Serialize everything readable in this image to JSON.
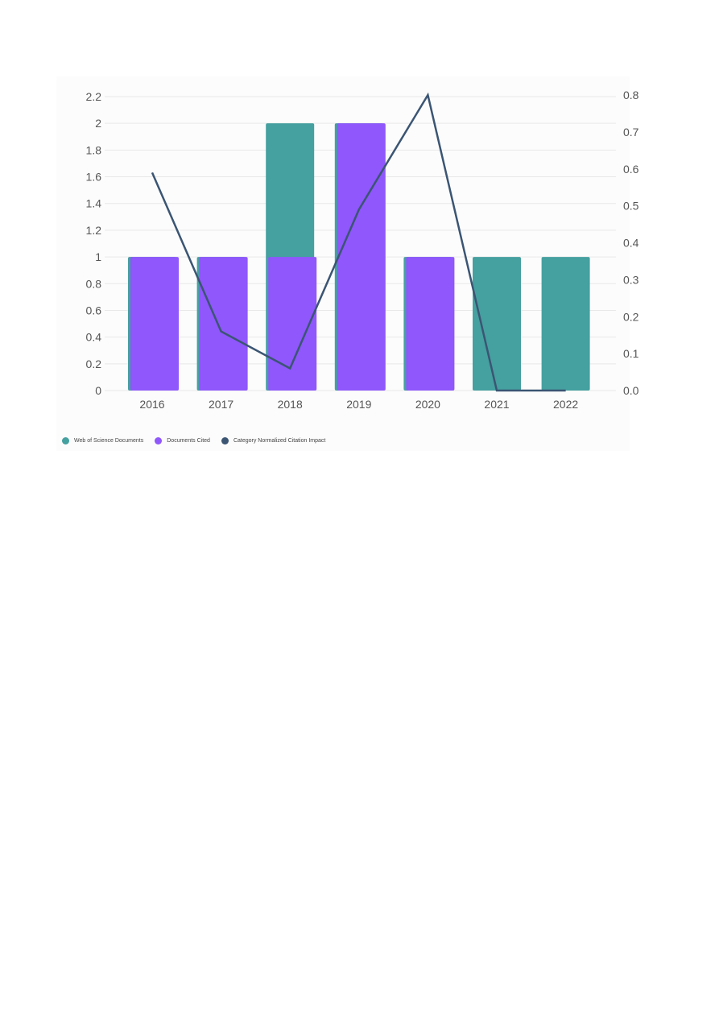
{
  "chart_data": {
    "type": "bar",
    "title": "",
    "categories": [
      "2016",
      "2017",
      "2018",
      "2019",
      "2020",
      "2021",
      "2022"
    ],
    "series": [
      {
        "name": "Web of Science Documents",
        "type": "bar",
        "axis": "left",
        "color": "#45a0a0",
        "values": [
          1,
          1,
          2,
          2,
          1,
          1,
          1
        ]
      },
      {
        "name": "Documents Cited",
        "type": "bar",
        "axis": "left",
        "color": "#8f57fc",
        "values": [
          1,
          1,
          1,
          2,
          1,
          0,
          0
        ]
      },
      {
        "name": "Category Normalized Citation Impact",
        "type": "line",
        "axis": "right",
        "color": "#3b5573",
        "values": [
          0.59,
          0.16,
          0.06,
          0.49,
          0.8,
          0.0,
          0.0
        ]
      }
    ],
    "left_axis": {
      "ylim": [
        0,
        2.2
      ],
      "ticks": [
        "0",
        "0.2",
        "0.4",
        "0.6",
        "0.8",
        "1",
        "1.2",
        "1.4",
        "1.6",
        "1.8",
        "2",
        "2.2"
      ]
    },
    "right_axis": {
      "ylim": [
        0,
        0.8
      ],
      "ticks": [
        "0.0",
        "0.1",
        "0.2",
        "0.3",
        "0.4",
        "0.5",
        "0.6",
        "0.7",
        "0.8"
      ]
    },
    "grid": true,
    "legend": "bottom-left"
  }
}
